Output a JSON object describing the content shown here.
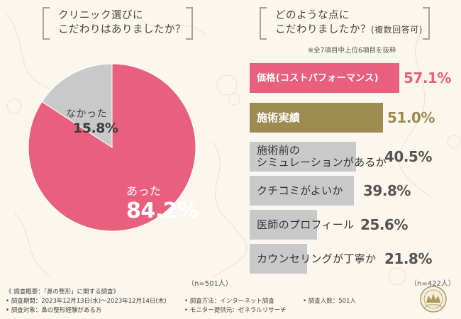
{
  "survey_left": {
    "question_line1": "クリニック選びに",
    "question_line2": "こだわりはありましたか？",
    "n_note": "（n=501人）"
  },
  "survey_right": {
    "question_line1": "どのような点に",
    "question_line2_main": "こだわりましたか？",
    "question_line2_sub": "(複数回答可)",
    "note": "※全7項目中上位6項目を抜粋",
    "n_note": "（n=422人）"
  },
  "colors": {
    "pink": "#e8607e",
    "gold": "#9d8b4f",
    "gray": "#c9c9c9",
    "bg": "#fbf7ee"
  },
  "chart_data": [
    {
      "type": "pie",
      "categories": [
        "あった",
        "なかった"
      ],
      "values": [
        84.2,
        15.8
      ],
      "value_labels": [
        "84.2%",
        "15.8%"
      ]
    },
    {
      "type": "bar",
      "categories": [
        "価格(コストパフォーマンス)",
        "施術実績",
        "施術前のシミュレーションがあるか",
        "クチコミがよいか",
        "医師のプロフィール",
        "カウンセリングが丁寧か"
      ],
      "label_lines": [
        [
          "価格(コストパフォーマンス)"
        ],
        [
          "施術実績"
        ],
        [
          "施術前の",
          "シミュレーションがあるか"
        ],
        [
          "クチコミがよいか"
        ],
        [
          "医師のプロフィール"
        ],
        [
          "カウンセリングが丁寧か"
        ]
      ],
      "values": [
        57.1,
        51.0,
        40.5,
        39.8,
        25.6,
        21.8
      ],
      "value_labels": [
        "57.1%",
        "51.0%",
        "40.5%",
        "39.8%",
        "25.6%",
        "21.8%"
      ]
    }
  ],
  "footer": {
    "title": "《 調査概要：「鼻の整形」に関する調査》",
    "period": "• 調査期間：2023年12月13日(水)～2023年12月14日(木)",
    "target": "• 調査対象：鼻の整形経験がある方",
    "method": "• 調査方法：インターネット調査",
    "provider": "• モニター提供元：ゼネラルリサーチ",
    "count": "• 調査人数：501人"
  },
  "seal": {
    "icon": "research-seal-icon"
  }
}
